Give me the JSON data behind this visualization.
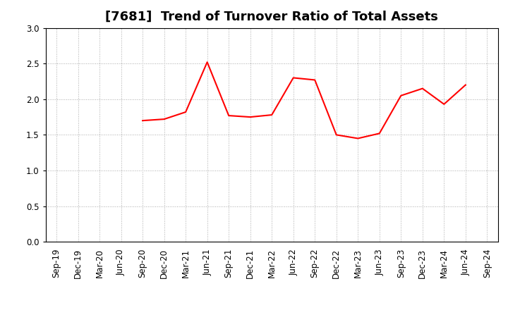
{
  "title": "[7681]  Trend of Turnover Ratio of Total Assets",
  "x_labels": [
    "Sep-19",
    "Dec-19",
    "Mar-20",
    "Jun-20",
    "Sep-20",
    "Dec-20",
    "Mar-21",
    "Jun-21",
    "Sep-21",
    "Dec-21",
    "Mar-22",
    "Jun-22",
    "Sep-22",
    "Dec-22",
    "Mar-23",
    "Jun-23",
    "Sep-23",
    "Dec-23",
    "Mar-24",
    "Jun-24",
    "Sep-24"
  ],
  "data_x_labels": [
    "Sep-20",
    "Dec-20",
    "Mar-21",
    "Jun-21",
    "Sep-21",
    "Dec-21",
    "Mar-22",
    "Jun-22",
    "Sep-22",
    "Dec-22",
    "Mar-23",
    "Jun-23",
    "Sep-23",
    "Dec-23",
    "Mar-24",
    "Jun-24"
  ],
  "data_values": [
    1.7,
    1.72,
    1.82,
    2.52,
    1.77,
    1.75,
    1.78,
    2.3,
    2.27,
    1.5,
    1.45,
    1.52,
    2.05,
    2.15,
    1.93,
    2.2
  ],
  "ylim": [
    0.0,
    3.0
  ],
  "yticks": [
    0.0,
    0.5,
    1.0,
    1.5,
    2.0,
    2.5,
    3.0
  ],
  "line_color": "#ff0000",
  "bg_color": "#ffffff",
  "grid_color": "#aaaaaa",
  "title_fontsize": 13,
  "tick_fontsize": 8.5
}
